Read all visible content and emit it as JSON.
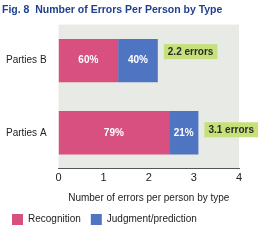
{
  "chart_data": {
    "type": "bar",
    "title": "Fig. 8  Number of Errors Per Person by Type",
    "orientation": "horizontal",
    "stacked": true,
    "categories": [
      "Parties B",
      "Parties A"
    ],
    "series": [
      {
        "name": "Recognition",
        "color": "#d8507f",
        "values": [
          1.32,
          2.45
        ],
        "share_labels": [
          "60%",
          "79%"
        ]
      },
      {
        "name": "Judgment/prediction",
        "color": "#4f74c2",
        "values": [
          0.88,
          0.65
        ],
        "share_labels": [
          "40%",
          "21%"
        ]
      }
    ],
    "annotations": [
      {
        "category": "Parties B",
        "text": "2.2 errors"
      },
      {
        "category": "Parties A",
        "text": "3.1 errors"
      }
    ],
    "x_label": "Number of errors per person by type",
    "xlim": [
      0,
      4
    ],
    "xticks": [
      0,
      1,
      2,
      3,
      4
    ],
    "grid": false,
    "legend": "bottom"
  }
}
